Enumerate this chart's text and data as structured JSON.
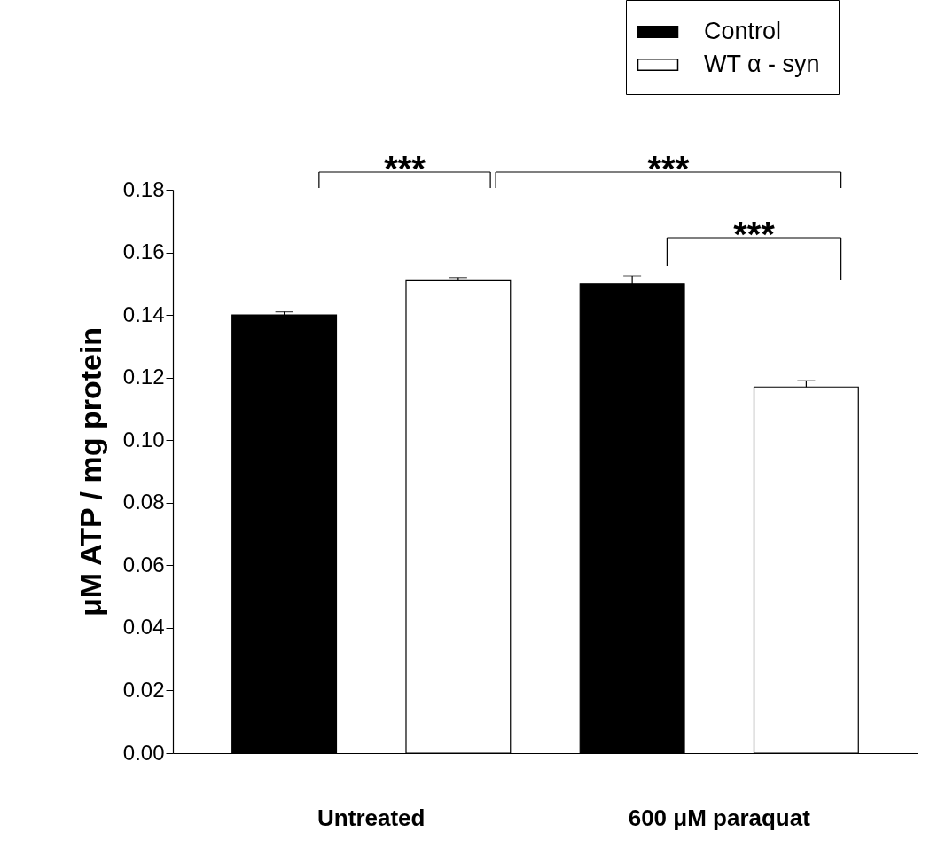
{
  "chart_data": {
    "type": "bar",
    "ylabel": "μM ATP / mg protein",
    "categories": [
      "Untreated",
      "600 μM paraquat"
    ],
    "series": [
      {
        "name": "Control",
        "color": "#000000",
        "values": [
          0.14,
          0.15
        ],
        "errors": [
          0.001,
          0.0025
        ]
      },
      {
        "name": "WT α - syn",
        "color": "#ffffff",
        "values": [
          0.151,
          0.117
        ],
        "errors": [
          0.001,
          0.002
        ]
      }
    ],
    "ylim": [
      0,
      0.18
    ],
    "yticks": [
      {
        "value": 0,
        "label": "0.00"
      },
      {
        "value": 0.02,
        "label": "0.02"
      },
      {
        "value": 0.04,
        "label": "0.04"
      },
      {
        "value": 0.06,
        "label": "0.06"
      },
      {
        "value": 0.08,
        "label": "0.08"
      },
      {
        "value": 0.1,
        "label": "0.10"
      },
      {
        "value": 0.12,
        "label": "0.12"
      },
      {
        "value": 0.14,
        "label": "0.14"
      },
      {
        "value": 0.16,
        "label": "0.16"
      },
      {
        "value": 0.18,
        "label": "0.18"
      }
    ],
    "legend": "top right",
    "grid": false,
    "annotations": [
      "***",
      "***",
      "***"
    ]
  }
}
